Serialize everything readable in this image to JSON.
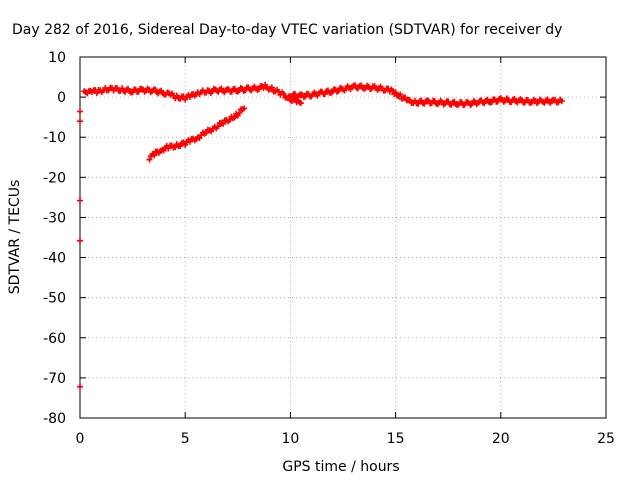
{
  "chart_data": {
    "type": "scatter",
    "title": "Day 282 of 2016, Sidereal Day-to-day VTEC variation (SDTVAR) for receiver dy",
    "xlabel": "GPS time / hours",
    "ylabel": "SDTVAR / TECUs",
    "xlim": [
      0,
      25
    ],
    "ylim": [
      -80,
      10
    ],
    "xticks": [
      0,
      5,
      10,
      15,
      20,
      25
    ],
    "yticks": [
      10,
      0,
      -10,
      -20,
      -30,
      -40,
      -50,
      -60,
      -70,
      -80
    ],
    "grid": true,
    "series": [
      {
        "color": "#ff0000",
        "marker": "plus",
        "segments": [
          [
            [
              0.2,
              1.0
            ],
            [
              0.5,
              1.8
            ],
            [
              0.8,
              1.2
            ],
            [
              1.2,
              2.0
            ],
            [
              1.6,
              2.0
            ],
            [
              2.0,
              1.8
            ],
            [
              2.5,
              1.5
            ],
            [
              3.0,
              1.8
            ],
            [
              3.5,
              1.6
            ],
            [
              4.0,
              1.0
            ],
            [
              4.3,
              0.6
            ],
            [
              4.6,
              0.0
            ],
            [
              5.0,
              -0.2
            ],
            [
              5.3,
              0.3
            ],
            [
              5.6,
              1.2
            ],
            [
              6.0,
              1.2
            ],
            [
              6.5,
              1.8
            ],
            [
              7.0,
              1.6
            ],
            [
              7.5,
              1.8
            ],
            [
              8.0,
              2.0
            ],
            [
              8.5,
              2.3
            ],
            [
              8.8,
              2.6
            ],
            [
              9.2,
              1.8
            ],
            [
              9.6,
              0.8
            ],
            [
              10.0,
              -0.5
            ],
            [
              10.3,
              -1.2
            ],
            [
              10.5,
              -1.5
            ]
          ],
          [
            [
              10.0,
              0.5
            ],
            [
              10.5,
              0.3
            ],
            [
              11.0,
              0.6
            ],
            [
              11.5,
              1.0
            ],
            [
              12.0,
              1.5
            ],
            [
              12.5,
              2.0
            ],
            [
              13.0,
              2.6
            ],
            [
              13.5,
              2.5
            ],
            [
              14.0,
              2.3
            ],
            [
              14.5,
              2.0
            ],
            [
              14.8,
              1.5
            ],
            [
              15.0,
              1.0
            ],
            [
              15.3,
              0.0
            ],
            [
              15.6,
              -1.0
            ],
            [
              16.0,
              -1.3
            ],
            [
              16.5,
              -1.2
            ],
            [
              17.0,
              -1.3
            ],
            [
              17.5,
              -1.5
            ],
            [
              18.0,
              -1.6
            ],
            [
              18.5,
              -1.6
            ],
            [
              19.0,
              -1.2
            ],
            [
              19.5,
              -1.0
            ],
            [
              20.0,
              -0.7
            ],
            [
              20.5,
              -0.8
            ],
            [
              21.0,
              -1.0
            ],
            [
              21.5,
              -1.1
            ],
            [
              22.0,
              -1.0
            ],
            [
              22.5,
              -1.0
            ],
            [
              22.9,
              -1.0
            ]
          ],
          [
            [
              3.3,
              -15.2
            ],
            [
              3.6,
              -14.0
            ],
            [
              3.9,
              -13.0
            ],
            [
              4.2,
              -12.5
            ],
            [
              4.6,
              -12.1
            ],
            [
              5.0,
              -11.5
            ],
            [
              5.3,
              -10.8
            ],
            [
              5.6,
              -10.0
            ],
            [
              6.0,
              -8.8
            ],
            [
              6.4,
              -7.6
            ],
            [
              6.8,
              -6.4
            ],
            [
              7.2,
              -5.2
            ],
            [
              7.5,
              -4.2
            ],
            [
              7.8,
              -2.8
            ]
          ]
        ],
        "isolated": [
          [
            0.0,
            -3.6
          ],
          [
            0.0,
            -6.0
          ],
          [
            0.0,
            -25.8
          ],
          [
            0.0,
            -35.8
          ],
          [
            0.0,
            -72.2
          ]
        ]
      }
    ]
  }
}
